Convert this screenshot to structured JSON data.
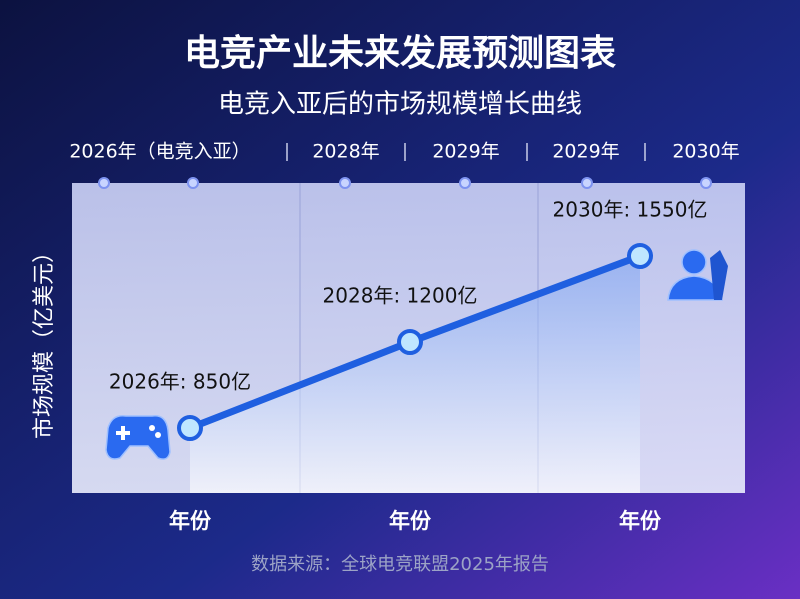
{
  "chart_data": {
    "type": "line",
    "title": "电竞产业未来发展预测图表",
    "subtitle": "电竞入亚后的市场规模增长曲线",
    "timeline": [
      "2026年（电竞入亚）",
      "2028年",
      "2029年",
      "2029年",
      "2030年"
    ],
    "y_label": "市场规模（亿美元）",
    "categories": [
      "年份",
      "年份",
      "年份"
    ],
    "values": [
      850,
      1200,
      1550
    ],
    "value_labels": [
      "2026年: 850亿",
      "2028年: 1200亿",
      "2030年: 1550亿"
    ],
    "color": "#1f5fe0",
    "source": "数据来源：全球电竞联盟2025年报告"
  }
}
